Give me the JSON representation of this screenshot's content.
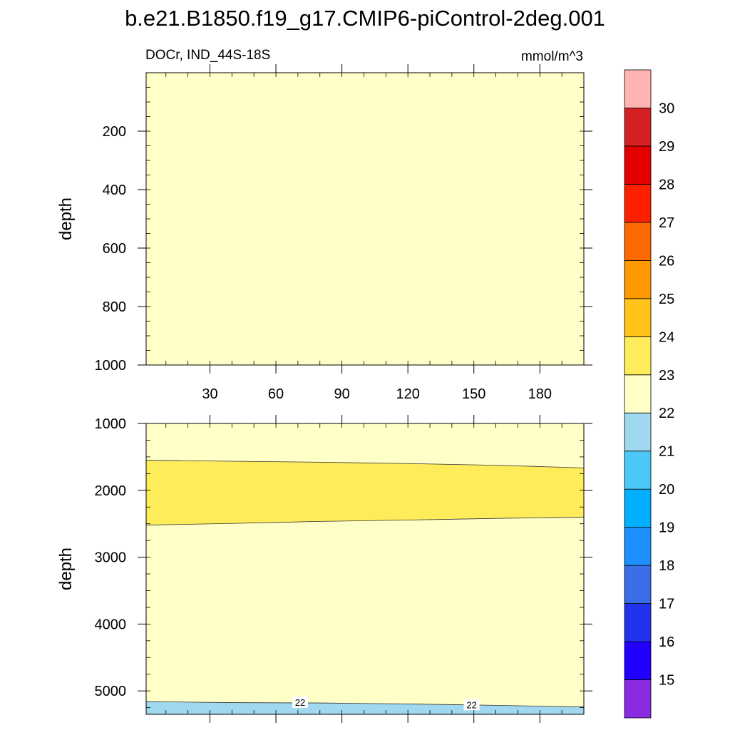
{
  "chart_data": {
    "type": "heatmap",
    "title": "b.e21.B1850.f19_g17.CMIP6-piControl-2deg.001",
    "subtitle_left": "DOCr, IND_44S-18S",
    "units": "mmol/m^3",
    "colorbar": {
      "levels": [
        15,
        16,
        17,
        18,
        19,
        20,
        21,
        22,
        23,
        24,
        25,
        26,
        27,
        28,
        29,
        30
      ],
      "colors": [
        "#8a2be2",
        "#2200ff",
        "#2233ee",
        "#3a6ee6",
        "#1e8fff",
        "#00b0ff",
        "#4cc8f7",
        "#a0d8f0",
        "#ffffc8",
        "#ffec5a",
        "#ffc31a",
        "#ff9900",
        "#ff6a00",
        "#ff2000",
        "#e40000",
        "#d42020",
        "#ffb4b4"
      ]
    },
    "panels": [
      {
        "name": "upper",
        "ylabel": "depth",
        "ylim": [
          0,
          1000
        ],
        "yticks": [
          200,
          400,
          600,
          800,
          1000
        ],
        "xlim": [
          1,
          200
        ],
        "xticks": [
          30,
          60,
          90,
          120,
          150,
          180
        ],
        "background_color": "#ffffc8",
        "bands": []
      },
      {
        "name": "lower",
        "ylabel": "depth",
        "ylim": [
          1000,
          5350
        ],
        "yticks": [
          1000,
          2000,
          3000,
          4000,
          5000
        ],
        "xlim": [
          1,
          200
        ],
        "xticks": [
          30,
          60,
          90,
          120,
          150,
          180
        ],
        "background_color": "#ffffc8",
        "bands": [
          {
            "range": "23-24",
            "color": "#ffec5a",
            "top": {
              "x": [
                1,
                40,
                80,
                120,
                160,
                200
              ],
              "y": [
                1550,
                1565,
                1580,
                1600,
                1625,
                1665
              ]
            },
            "bottom": {
              "x": [
                1,
                40,
                80,
                120,
                160,
                200
              ],
              "y": [
                2520,
                2495,
                2465,
                2445,
                2420,
                2400
              ]
            }
          },
          {
            "range": "21-22",
            "color": "#a0d8f0",
            "top": {
              "x": [
                1,
                40,
                80,
                120,
                160,
                200
              ],
              "y": [
                5160,
                5175,
                5180,
                5195,
                5215,
                5240
              ]
            },
            "bottom": {
              "x": [
                1,
                200
              ],
              "y": [
                5350,
                5350
              ]
            }
          }
        ],
        "contour_labels": [
          {
            "x": 71,
            "y": 5178,
            "text": "22"
          },
          {
            "x": 149,
            "y": 5215,
            "text": "22"
          }
        ]
      }
    ]
  }
}
